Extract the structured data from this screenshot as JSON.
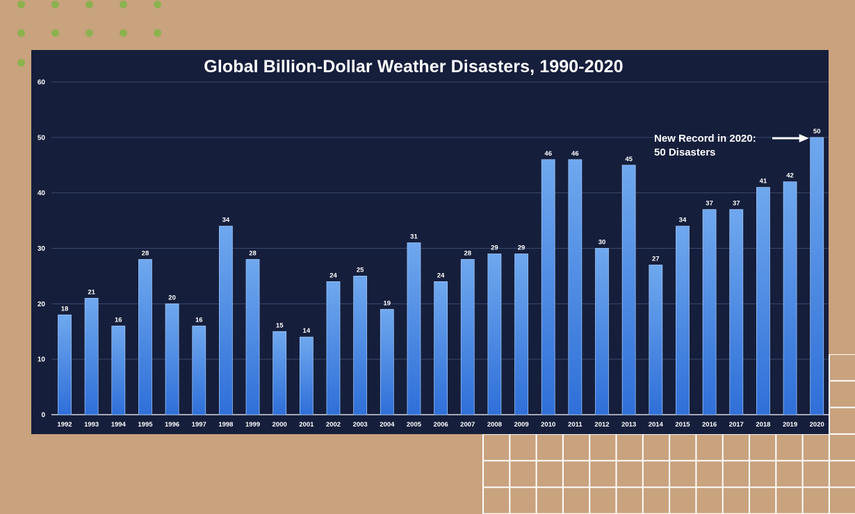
{
  "colors": {
    "background": "#c9a27e",
    "panel": "#151e3b",
    "bar_top": "#6fa8ee",
    "bar_bottom": "#2f6fd8",
    "gridline": "#3a4a6e",
    "dot": "#8cb24f",
    "grid_decoration": "#ffffff"
  },
  "decorations": {
    "dots": "green-dot-pattern",
    "grid": "white-grid-pattern"
  },
  "chart_data": {
    "type": "bar",
    "title": "Global Billion-Dollar Weather Disasters, 1990-2020",
    "xlabel": "",
    "ylabel": "",
    "ylim": [
      0,
      60
    ],
    "yticks": [
      0,
      10,
      20,
      30,
      40,
      50,
      60
    ],
    "grid": true,
    "categories": [
      "1992",
      "1993",
      "1994",
      "1995",
      "1996",
      "1997",
      "1998",
      "1999",
      "2000",
      "2001",
      "2002",
      "2003",
      "2004",
      "2005",
      "2006",
      "2007",
      "2008",
      "2009",
      "2010",
      "2011",
      "2012",
      "2013",
      "2014",
      "2015",
      "2016",
      "2017",
      "2018",
      "2019",
      "2020"
    ],
    "values": [
      18,
      21,
      16,
      28,
      20,
      16,
      34,
      28,
      15,
      14,
      24,
      25,
      19,
      31,
      24,
      28,
      29,
      29,
      46,
      46,
      30,
      45,
      27,
      34,
      37,
      37,
      41,
      42,
      50
    ],
    "annotation": {
      "line1": "New Record in 2020:",
      "line2": "50 Disasters",
      "target_category": "2020"
    }
  }
}
